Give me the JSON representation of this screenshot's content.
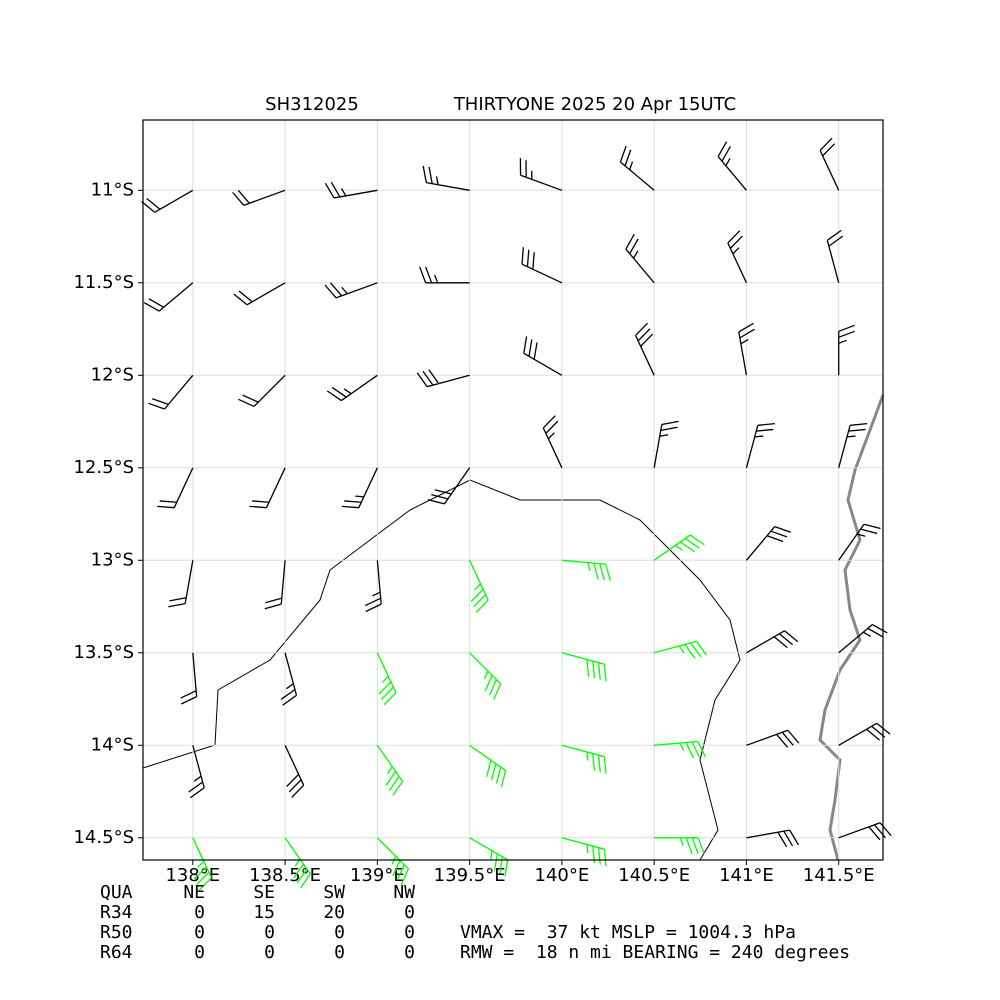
{
  "chart_data": {
    "type": "barbs",
    "title": "SH312025",
    "subtitle": "THIRTYONE 2025 20 Apr 15UTC",
    "xlim": [
      137.73,
      141.74
    ],
    "ylim": [
      -14.62,
      -10.62
    ],
    "xticks": [
      {
        "value": 138,
        "label": "138°E"
      },
      {
        "value": 138.5,
        "label": "138.5°E"
      },
      {
        "value": 139,
        "label": "139°E"
      },
      {
        "value": 139.5,
        "label": "139.5°E"
      },
      {
        "value": 140,
        "label": "140°E"
      },
      {
        "value": 140.5,
        "label": "140.5°E"
      },
      {
        "value": 141,
        "label": "141°E"
      },
      {
        "value": 141.5,
        "label": "141.5°E"
      }
    ],
    "yticks": [
      {
        "value": -11,
        "label": "11°S"
      },
      {
        "value": -11.5,
        "label": "11.5°S"
      },
      {
        "value": -12,
        "label": "12°S"
      },
      {
        "value": -12.5,
        "label": "12.5°S"
      },
      {
        "value": -13,
        "label": "13°S"
      },
      {
        "value": -13.5,
        "label": "13.5°S"
      },
      {
        "value": -14,
        "label": "14°S"
      },
      {
        "value": -14.5,
        "label": "14.5°S"
      }
    ],
    "grid": true,
    "x": [
      138,
      138.5,
      139,
      139.5,
      140,
      140.5,
      141,
      141.5
    ],
    "y": [
      -11,
      -11.5,
      -12,
      -12.5,
      -13,
      -13.5,
      -14,
      -14.5
    ],
    "speed": [
      [
        20,
        20,
        25,
        25,
        25,
        25,
        25,
        20
      ],
      [
        20,
        20,
        25,
        25,
        30,
        25,
        25,
        20
      ],
      [
        20,
        20,
        25,
        30,
        30,
        30,
        25,
        25
      ],
      [
        20,
        20,
        25,
        30,
        25,
        25,
        25,
        25
      ],
      [
        20,
        20,
        25,
        35,
        35,
        35,
        30,
        25
      ],
      [
        20,
        25,
        35,
        35,
        40,
        35,
        30,
        25
      ],
      [
        25,
        30,
        35,
        40,
        35,
        35,
        30,
        30
      ],
      [
        35,
        35,
        35,
        35,
        35,
        35,
        30,
        30
      ]
    ],
    "direction": [
      [
        240,
        250,
        260,
        280,
        290,
        310,
        320,
        335
      ],
      [
        230,
        240,
        250,
        270,
        295,
        320,
        335,
        345
      ],
      [
        220,
        225,
        235,
        255,
        300,
        335,
        350,
        0
      ],
      [
        205,
        205,
        205,
        215,
        335,
        10,
        15,
        15
      ],
      [
        190,
        185,
        175,
        155,
        95,
        55,
        40,
        35
      ],
      [
        175,
        165,
        155,
        135,
        105,
        75,
        60,
        50
      ],
      [
        165,
        155,
        145,
        125,
        105,
        85,
        70,
        60
      ],
      [
        155,
        145,
        135,
        120,
        105,
        90,
        80,
        70
      ]
    ],
    "colors": [
      [
        "#000000",
        "#000000",
        "#000000",
        "#000000",
        "#000000",
        "#000000",
        "#000000",
        "#000000"
      ],
      [
        "#000000",
        "#000000",
        "#000000",
        "#000000",
        "#000000",
        "#000000",
        "#000000",
        "#000000"
      ],
      [
        "#000000",
        "#000000",
        "#000000",
        "#000000",
        "#000000",
        "#000000",
        "#000000",
        "#000000"
      ],
      [
        "#000000",
        "#000000",
        "#000000",
        "#000000",
        "#000000",
        "#000000",
        "#000000",
        "#000000"
      ],
      [
        "#000000",
        "#000000",
        "#000000",
        "#00ff00",
        "#00ff00",
        "#00ff00",
        "#000000",
        "#000000"
      ],
      [
        "#000000",
        "#000000",
        "#00ff00",
        "#00ff00",
        "#00ff00",
        "#00ff00",
        "#000000",
        "#000000"
      ],
      [
        "#000000",
        "#000000",
        "#00ff00",
        "#00ff00",
        "#00ff00",
        "#00ff00",
        "#000000",
        "#000000"
      ],
      [
        "#00ff00",
        "#00ff00",
        "#00ff00",
        "#00ff00",
        "#00ff00",
        "#00ff00",
        "#000000",
        "#000000"
      ]
    ],
    "wind_radii": {
      "header": [
        "QUA",
        "NE",
        "SE",
        "SW",
        "NW"
      ],
      "rows": [
        [
          "R34",
          0,
          15,
          20,
          0
        ],
        [
          "R50",
          0,
          0,
          0,
          0
        ],
        [
          "R64",
          0,
          0,
          0,
          0
        ]
      ]
    },
    "annotations": [
      "VMAX =  37 kt MSLP = 1004.3 hPa",
      "RMW =  18 n mi BEARING = 240 degrees"
    ]
  }
}
